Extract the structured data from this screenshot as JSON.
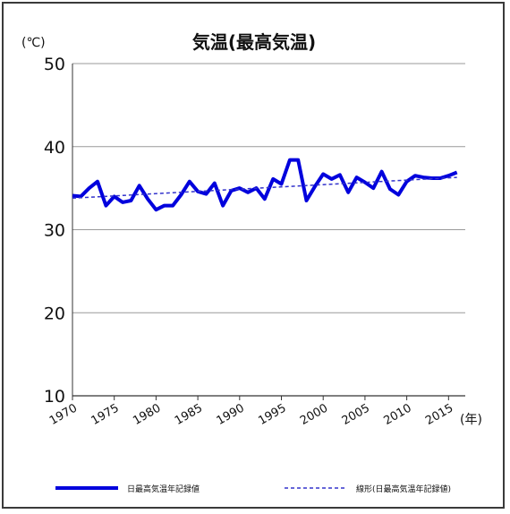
{
  "chart_data": {
    "type": "line",
    "title": "気温(最高気温)",
    "y_unit": "(℃)",
    "x_unit": "(年)",
    "ylim": [
      10,
      50
    ],
    "yticks": [
      10,
      20,
      30,
      40,
      50
    ],
    "xlim": [
      1970,
      2017
    ],
    "xticks": [
      1970,
      1975,
      1980,
      1985,
      1990,
      1995,
      2000,
      2005,
      2010,
      2015
    ],
    "grid": true,
    "legend_position": "bottom",
    "series": [
      {
        "name": "日最高気温年記録値",
        "style": "solid",
        "color": "#0000dd",
        "x": [
          1970,
          1971,
          1972,
          1973,
          1974,
          1975,
          1976,
          1977,
          1978,
          1979,
          1980,
          1981,
          1982,
          1983,
          1984,
          1985,
          1986,
          1987,
          1988,
          1989,
          1990,
          1991,
          1992,
          1993,
          1994,
          1995,
          1996,
          1997,
          1998,
          1999,
          2000,
          2001,
          2002,
          2003,
          2004,
          2005,
          2006,
          2007,
          2008,
          2009,
          2010,
          2011,
          2012,
          2013,
          2014,
          2015,
          2016
        ],
        "y": [
          34.1,
          34.0,
          35.0,
          35.8,
          32.9,
          34.0,
          33.3,
          33.5,
          35.3,
          33.7,
          32.4,
          32.9,
          32.9,
          34.2,
          35.8,
          34.6,
          34.3,
          35.6,
          32.9,
          34.7,
          35.0,
          34.5,
          35.0,
          33.7,
          36.1,
          35.5,
          38.4,
          38.4,
          33.5,
          35.2,
          36.7,
          36.1,
          36.6,
          34.5,
          36.3,
          35.7,
          35.0,
          37.0,
          34.9,
          34.2,
          35.8,
          36.5,
          36.3,
          36.2,
          36.2,
          36.5,
          36.9
        ]
      },
      {
        "name": "線形(日最高気温年記録値)",
        "style": "dashed",
        "color": "#3333cc",
        "x": [
          1970,
          2016
        ],
        "y": [
          33.8,
          36.3
        ]
      }
    ]
  },
  "colors": {
    "series_main": "#0000dd",
    "trend": "#3333cc",
    "grid": "#9a9a9a",
    "axis": "#333333"
  }
}
